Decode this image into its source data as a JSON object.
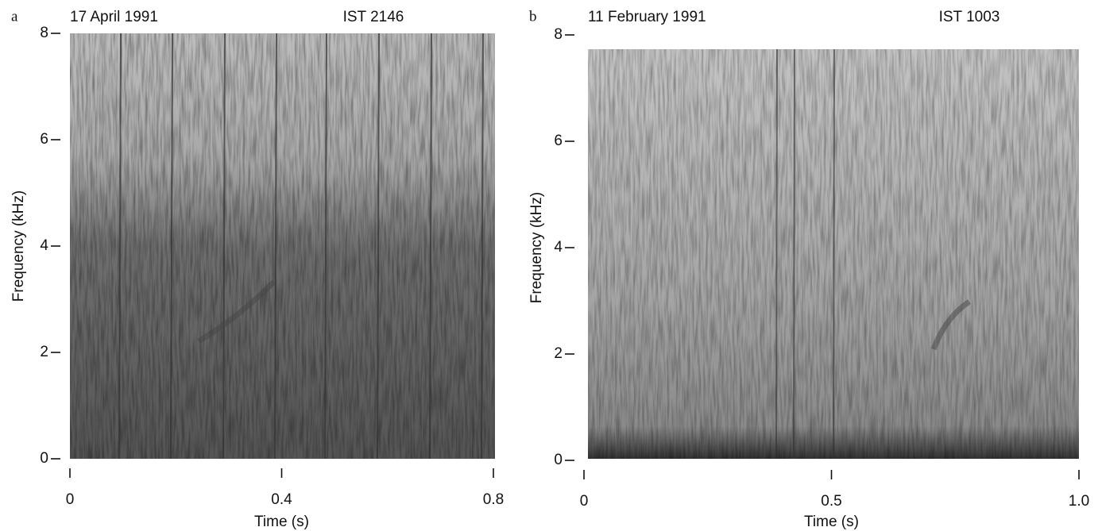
{
  "chart_data": [
    {
      "type": "spectrogram",
      "panel_label": "a",
      "title": "17 April 1991",
      "annotation": "IST 2146",
      "x_label": "Time (s)",
      "y_label": "Frequency (kHz)",
      "xlim": [
        0,
        0.8
      ],
      "xticks": [
        0,
        0.4,
        0.8
      ],
      "ylim": [
        0,
        8
      ],
      "yticks": [
        0,
        2,
        4,
        6,
        8
      ]
    },
    {
      "type": "spectrogram",
      "panel_label": "b",
      "title": "11 February 1991",
      "annotation": "IST 1003",
      "x_label": "Time (s)",
      "y_label": "Frequency (kHz)",
      "xlim": [
        0,
        1
      ],
      "xticks": [
        0,
        0.5,
        {
          "value": 1,
          "label": "1.0"
        }
      ],
      "ylim": [
        0,
        8
      ],
      "yticks": [
        0,
        2,
        4,
        6,
        8
      ]
    }
  ]
}
